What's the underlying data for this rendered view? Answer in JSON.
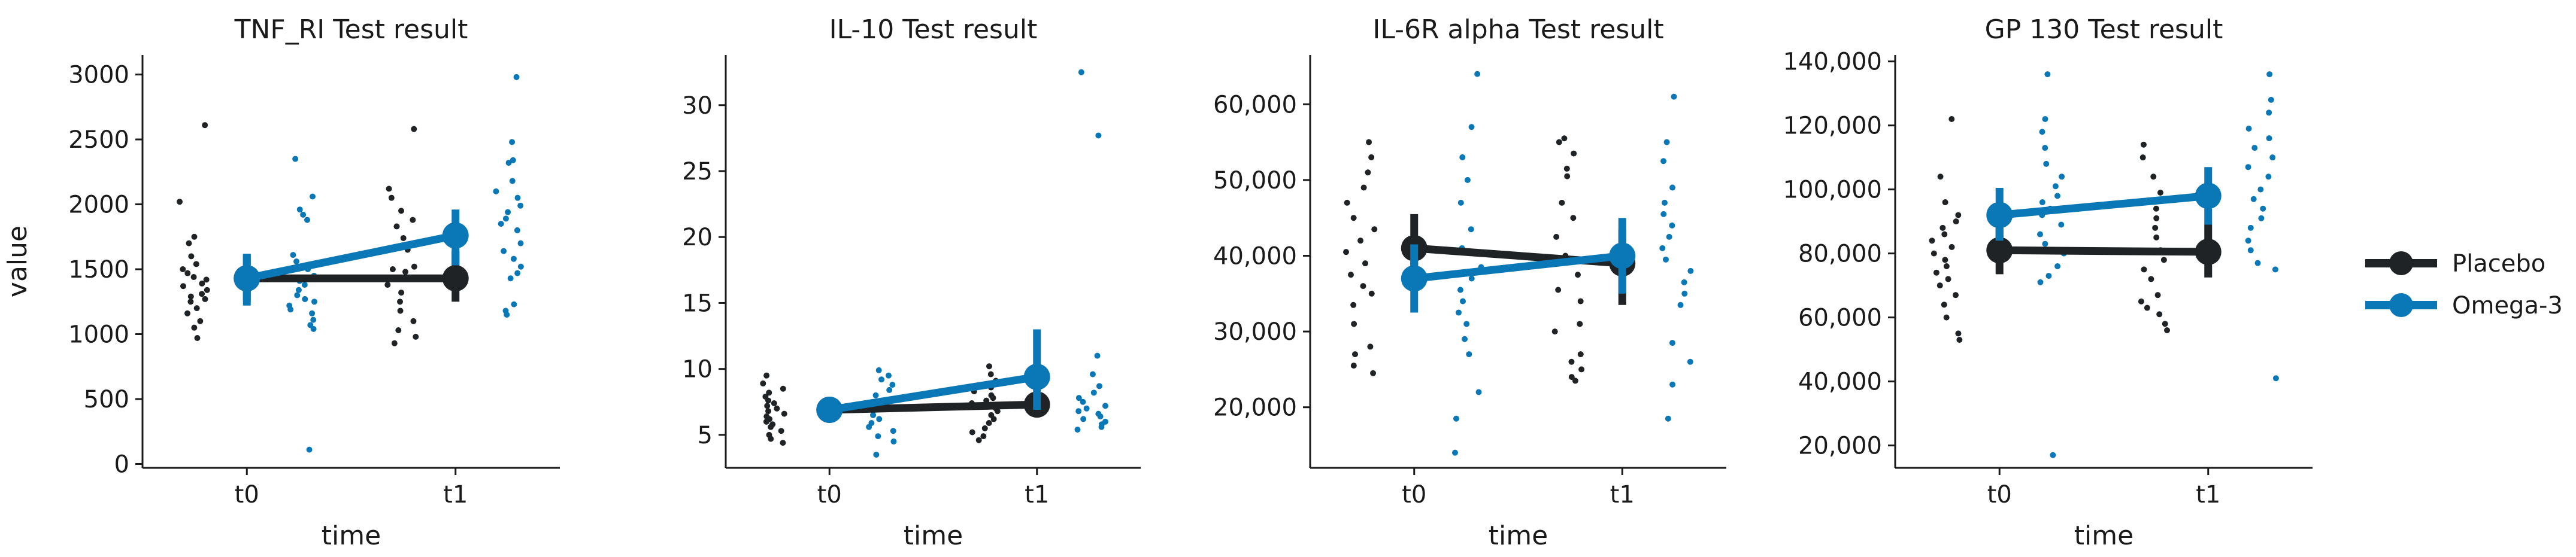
{
  "colors": {
    "placebo": "#1f2326",
    "omega": "#0a77b6",
    "axis": "#1a1a1a"
  },
  "legend": {
    "placement": "right",
    "items": [
      "Placebo",
      "Omega-3"
    ]
  },
  "chart_data": [
    {
      "type": "point",
      "title": "TNF_RI Test result",
      "xlabel": "time",
      "ylabel": "value",
      "categories": [
        "t0",
        "t1"
      ],
      "ylim": [
        -30,
        3150
      ],
      "yticks": [
        0,
        500,
        1000,
        1500,
        2000,
        2500,
        3000
      ],
      "ytick_labels": [
        "0",
        "500",
        "1000",
        "1500",
        "2000",
        "2500",
        "3000"
      ],
      "series": [
        {
          "name": "Placebo",
          "means": [
            1430,
            1430
          ],
          "ci": [
            [
              1260,
              1610
            ],
            [
              1250,
              1640
            ]
          ],
          "points": [
            [
              2610,
              2020,
              1750,
              1700,
              1600,
              1540,
              1500,
              1470,
              1440,
              1420,
              1390,
              1370,
              1340,
              1310,
              1290,
              1270,
              1250,
              1200,
              1160,
              1100,
              1050,
              970
            ],
            [
              2580,
              2120,
              2050,
              1950,
              1880,
              1830,
              1740,
              1650,
              1520,
              1500,
              1480,
              1430,
              1380,
              1320,
              1250,
              1180,
              1100,
              1030,
              980,
              930
            ]
          ]
        },
        {
          "name": "Omega-3",
          "means": [
            1430,
            1760
          ],
          "ci": [
            [
              1220,
              1620
            ],
            [
              1530,
              1960
            ]
          ],
          "points": [
            [
              2350,
              2060,
              1960,
              1920,
              1880,
              1610,
              1560,
              1500,
              1450,
              1410,
              1380,
              1340,
              1300,
              1270,
              1250,
              1220,
              1190,
              1160,
              1110,
              1070,
              1040,
              110
            ],
            [
              2980,
              2480,
              2340,
              2320,
              2180,
              2100,
              2050,
              1990,
              1940,
              1890,
              1850,
              1800,
              1700,
              1640,
              1580,
              1520,
              1470,
              1430,
              1230,
              1180,
              1150
            ]
          ]
        }
      ]
    },
    {
      "type": "point",
      "title": "IL-10 Test result",
      "xlabel": "time",
      "ylabel": "",
      "categories": [
        "t0",
        "t1"
      ],
      "ylim": [
        2.5,
        33.8
      ],
      "yticks": [
        5,
        10,
        15,
        20,
        25,
        30
      ],
      "ytick_labels": [
        "5",
        "10",
        "15",
        "20",
        "25",
        "30"
      ],
      "series": [
        {
          "name": "Placebo",
          "means": [
            6.9,
            7.3
          ],
          "ci": [
            [
              6.3,
              7.6
            ],
            [
              6.4,
              8.2
            ]
          ],
          "points": [
            [
              9.5,
              8.9,
              8.5,
              8.2,
              7.9,
              7.6,
              7.4,
              7.2,
              7.0,
              6.8,
              6.6,
              6.4,
              6.2,
              6.0,
              5.8,
              5.6,
              5.3,
              5.0,
              4.7,
              4.4
            ],
            [
              10.2,
              9.6,
              9.1,
              8.6,
              8.3,
              8.0,
              7.8,
              7.6,
              7.4,
              7.2,
              7.0,
              6.8,
              6.5,
              6.2,
              5.9,
              5.5,
              5.2,
              4.9,
              4.6
            ]
          ]
        },
        {
          "name": "Omega-3",
          "means": [
            6.9,
            9.4
          ],
          "ci": [
            [
              6.3,
              7.6
            ],
            [
              6.9,
              13.0
            ]
          ],
          "points": [
            [
              9.9,
              9.5,
              9.2,
              8.8,
              8.4,
              8.0,
              7.7,
              7.4,
              7.1,
              6.8,
              6.5,
              6.2,
              5.9,
              5.6,
              5.3,
              4.9,
              4.5,
              3.5
            ],
            [
              32.5,
              27.7,
              11.0,
              9.6,
              8.7,
              8.2,
              7.8,
              7.5,
              7.2,
              7.0,
              6.8,
              6.6,
              6.4,
              6.2,
              6.0,
              5.8,
              5.6,
              5.4
            ]
          ]
        }
      ]
    },
    {
      "type": "point",
      "title": "IL-6R alpha Test result",
      "xlabel": "time",
      "ylabel": "",
      "categories": [
        "t0",
        "t1"
      ],
      "ylim": [
        12000,
        66500
      ],
      "yticks": [
        20000,
        30000,
        40000,
        50000,
        60000
      ],
      "ytick_labels": [
        "20,000",
        "30,000",
        "40,000",
        "50,000",
        "60,000"
      ],
      "series": [
        {
          "name": "Placebo",
          "means": [
            41000,
            39000
          ],
          "ci": [
            [
              36500,
              45500
            ],
            [
              33500,
              43500
            ]
          ],
          "points": [
            [
              55000,
              53000,
              51000,
              49000,
              47000,
              45000,
              43500,
              42000,
              40500,
              39000,
              37500,
              36000,
              35000,
              33500,
              31000,
              28000,
              27000,
              25500,
              24500
            ],
            [
              55500,
              55000,
              53500,
              51500,
              50500,
              47000,
              45000,
              42500,
              40000,
              37500,
              35500,
              34000,
              31000,
              30000,
              27000,
              26000,
              25000,
              24000,
              23500
            ]
          ]
        },
        {
          "name": "Omega-3",
          "means": [
            37000,
            40000
          ],
          "ci": [
            [
              32500,
              41500
            ],
            [
              35000,
              45000
            ]
          ],
          "points": [
            [
              64000,
              57000,
              53000,
              50000,
              47000,
              43500,
              41000,
              38500,
              37000,
              35500,
              34000,
              32500,
              31000,
              29000,
              27000,
              22000,
              18500,
              14000
            ],
            [
              61000,
              55000,
              52500,
              49000,
              47000,
              45500,
              44000,
              42500,
              41000,
              39500,
              38000,
              36500,
              35000,
              33500,
              28500,
              26000,
              23000,
              18500
            ]
          ]
        }
      ]
    },
    {
      "type": "point",
      "title": "GP 130 Test result",
      "xlabel": "time",
      "ylabel": "",
      "categories": [
        "t0",
        "t1"
      ],
      "ylim": [
        13000,
        142000
      ],
      "yticks": [
        20000,
        40000,
        60000,
        80000,
        100000,
        120000,
        140000
      ],
      "ytick_labels": [
        "20,000",
        "40,000",
        "60,000",
        "80,000",
        "100,000",
        "120,000",
        "140,000"
      ],
      "series": [
        {
          "name": "Placebo",
          "means": [
            81000,
            80500
          ],
          "ci": [
            [
              73500,
              88000
            ],
            [
              72500,
              89000
            ]
          ],
          "points": [
            [
              122000,
              104000,
              96000,
              92000,
              90000,
              88000,
              86000,
              84000,
              82000,
              80000,
              78000,
              76000,
              74000,
              72000,
              70000,
              67000,
              64000,
              60000,
              55000,
              53000
            ],
            [
              114000,
              110000,
              104000,
              99000,
              96000,
              94000,
              91000,
              88000,
              85000,
              81000,
              78000,
              75000,
              72000,
              67000,
              65000,
              63000,
              61000,
              58000,
              56000
            ]
          ]
        },
        {
          "name": "Omega-3",
          "means": [
            92000,
            98000
          ],
          "ci": [
            [
              84000,
              100500
            ],
            [
              89000,
              107000
            ]
          ],
          "points": [
            [
              136000,
              122000,
              118000,
              113000,
              108000,
              104000,
              101000,
              98000,
              96000,
              94000,
              92000,
              89000,
              86000,
              83000,
              80000,
              76000,
              73000,
              71000,
              17000
            ],
            [
              136000,
              128000,
              124000,
              119000,
              116000,
              113000,
              110000,
              107000,
              104000,
              100000,
              97000,
              94000,
              91000,
              88000,
              84000,
              81000,
              77000,
              75000,
              41000
            ]
          ]
        }
      ]
    }
  ]
}
